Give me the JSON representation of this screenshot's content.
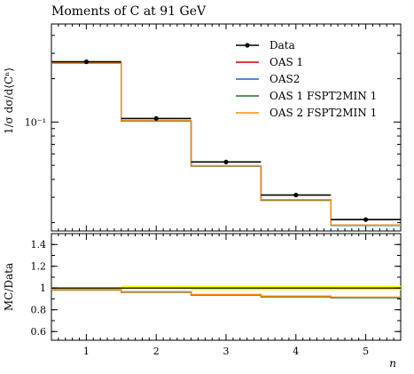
{
  "chart_data": [
    {
      "panel": "main",
      "type": "line",
      "title": "Moments of C at 91 GeV",
      "ylabel": "1/σ dσ/d⟨Cⁿ⟩",
      "xlabel": "n",
      "yscale": "log",
      "x_edges": [
        0.5,
        1.5,
        2.5,
        3.5,
        4.5,
        5.5
      ],
      "xlim": [
        0.5,
        5.5
      ],
      "ylim": [
        0.0175,
        0.48
      ],
      "y_tick_labels": [
        {
          "value": 0.1,
          "text": "10⁻¹"
        }
      ],
      "legend_placement": "top-right",
      "legend": [
        "Data",
        "OAS 1",
        "OAS2",
        "OAS 1 FSPT2MIN 1",
        "OAS 2 FSPT2MIN 1"
      ],
      "series": [
        {
          "name": "Data",
          "color": "#000000",
          "marker": "point",
          "x": [
            1,
            2,
            3,
            4,
            5
          ],
          "values": [
            0.262,
            0.1058,
            0.0528,
            0.0311,
            0.021
          ]
        },
        {
          "name": "OAS 1",
          "color": "#cc0000",
          "values": [
            0.257,
            0.1015,
            0.0494,
            0.0286,
            0.0191
          ]
        },
        {
          "name": "OAS2",
          "color": "#1f5fd6",
          "values": [
            0.258,
            0.102,
            0.0497,
            0.0288,
            0.0192
          ]
        },
        {
          "name": "OAS 1 FSPT2MIN 1",
          "color": "#1a7a1a",
          "values": [
            0.257,
            0.1015,
            0.0494,
            0.0286,
            0.0191
          ]
        },
        {
          "name": "OAS 2 FSPT2MIN 1",
          "color": "#ff8c00",
          "values": [
            0.258,
            0.102,
            0.0497,
            0.0288,
            0.0192
          ]
        }
      ]
    },
    {
      "panel": "ratio",
      "type": "line",
      "ylabel": "MC/Data",
      "xlabel": "n",
      "x_edges": [
        0.5,
        1.5,
        2.5,
        3.5,
        4.5,
        5.5
      ],
      "xlim": [
        0.5,
        5.5
      ],
      "ylim": [
        0.52,
        1.5
      ],
      "x_ticks": [
        1,
        2,
        3,
        4,
        5
      ],
      "y_ticks": [
        0.6,
        0.8,
        1.0,
        1.2,
        1.4
      ],
      "y_tick_labels": [
        "0.6",
        "0.8",
        "1",
        "1.2",
        "1.4"
      ],
      "band": {
        "color": "#ffff00",
        "lower": [
          0.99,
          0.99,
          0.98,
          0.98,
          0.98
        ],
        "upper": [
          1.01,
          1.02,
          1.02,
          1.02,
          1.02
        ]
      },
      "series": [
        {
          "name": "OAS 1",
          "color": "#cc0000",
          "values": [
            0.982,
            0.962,
            0.936,
            0.92,
            0.91
          ]
        },
        {
          "name": "OAS2",
          "color": "#1f5fd6",
          "values": [
            0.985,
            0.965,
            0.94,
            0.925,
            0.915
          ]
        },
        {
          "name": "OAS 1 FSPT2MIN 1",
          "color": "#1a7a1a",
          "values": [
            0.982,
            0.962,
            0.936,
            0.92,
            0.91
          ]
        },
        {
          "name": "OAS 2 FSPT2MIN 1",
          "color": "#ff8c00",
          "values": [
            0.985,
            0.965,
            0.94,
            0.925,
            0.915
          ]
        }
      ]
    }
  ]
}
